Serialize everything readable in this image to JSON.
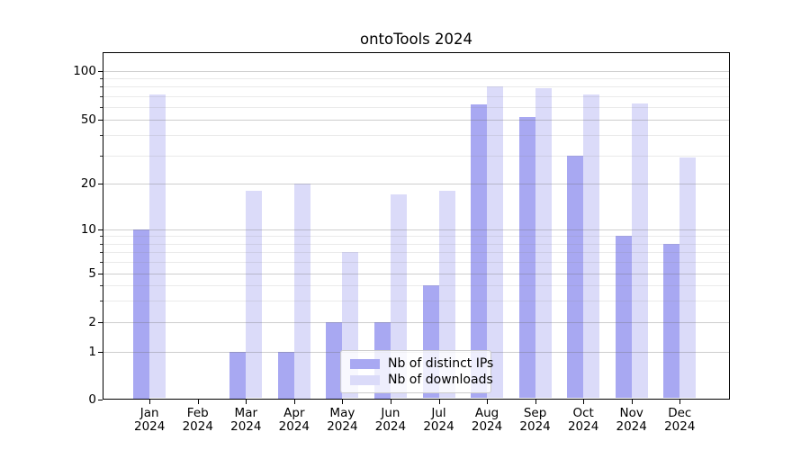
{
  "chart_data": {
    "type": "bar",
    "title": "ontoTools 2024",
    "categories": [
      "Jan",
      "Feb",
      "Mar",
      "Apr",
      "May",
      "Jun",
      "Jul",
      "Aug",
      "Sep",
      "Oct",
      "Nov",
      "Dec"
    ],
    "category_year": "2024",
    "series": [
      {
        "name": "Nb of distinct IPs",
        "color": "#a8a8f2",
        "values": [
          10,
          0,
          1,
          1,
          2,
          2,
          4,
          62,
          52,
          30,
          9,
          8
        ]
      },
      {
        "name": "Nb of downloads",
        "color": "#dbdbf9",
        "values": [
          72,
          0,
          18,
          20,
          7,
          17,
          18,
          80,
          78,
          72,
          63,
          29
        ]
      }
    ],
    "yscale": "log-like",
    "yticks": [
      "0",
      "1",
      "2",
      "5",
      "10",
      "20",
      "50",
      "100"
    ],
    "ylim": [
      0,
      130
    ],
    "grid": "on (major and minor horizontal lines)",
    "legend_position": "lower center inside plot"
  }
}
